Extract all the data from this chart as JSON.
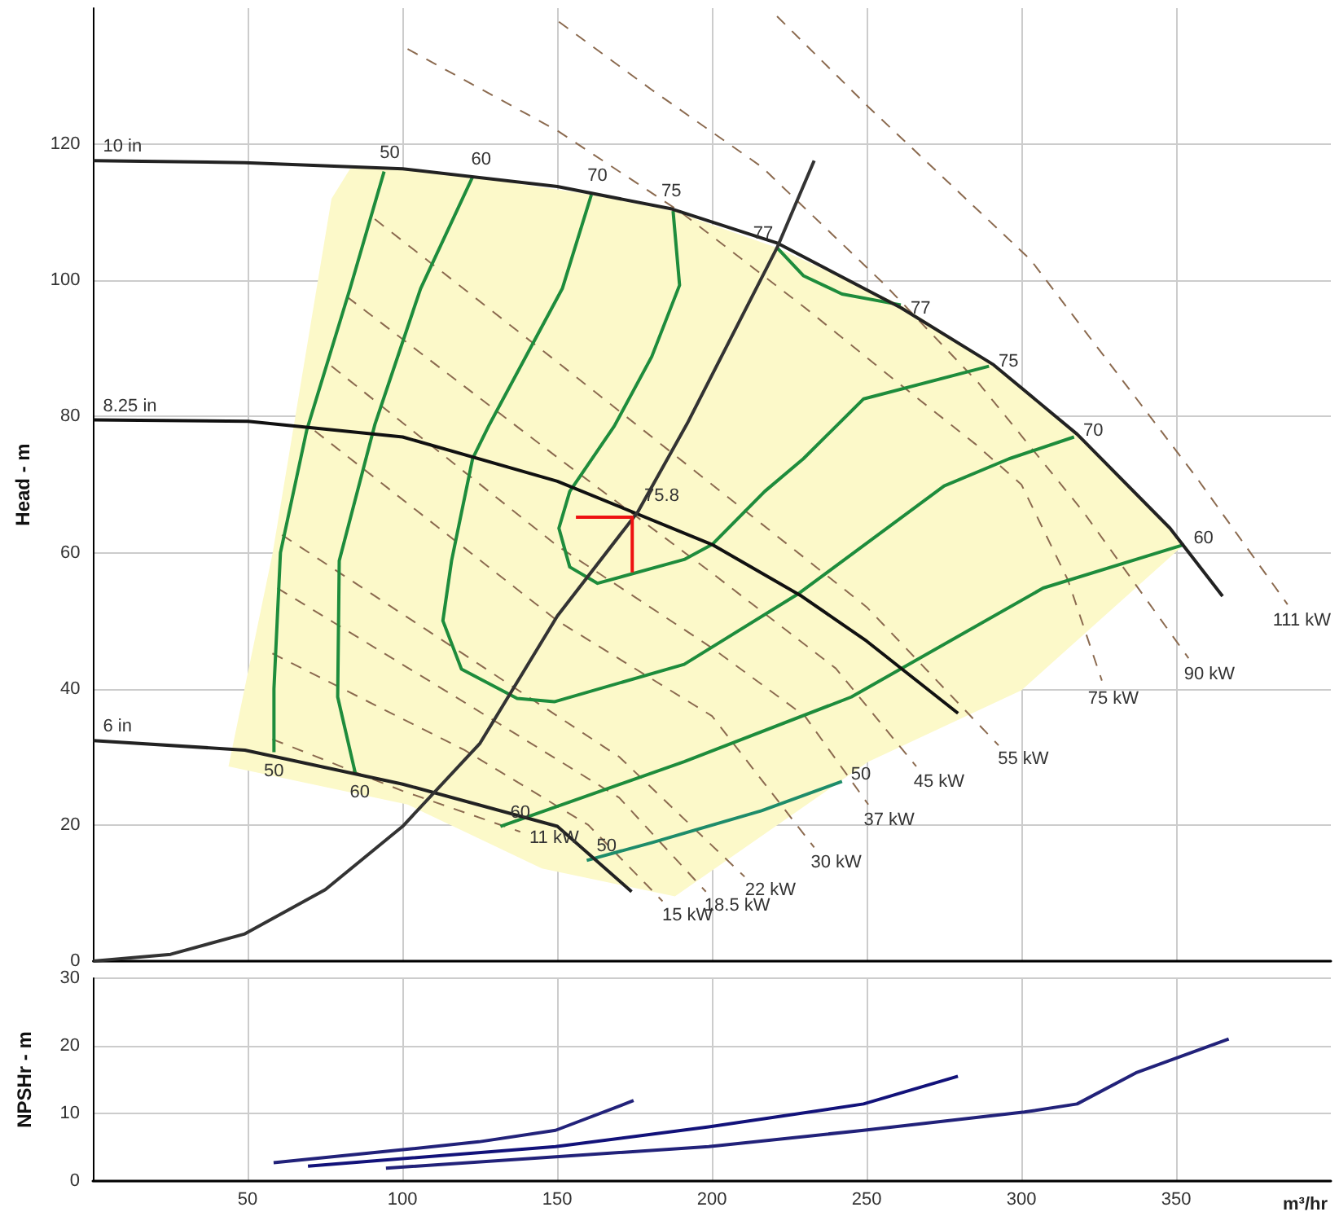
{
  "chart_data": [
    {
      "type": "line",
      "ylabel": "Head - m",
      "xlim": [
        0,
        400
      ],
      "ylim": [
        0,
        140
      ],
      "xticks": [
        50,
        100,
        150,
        200,
        250,
        300,
        350
      ],
      "yticks": [
        0,
        20,
        40,
        60,
        80,
        100,
        120
      ],
      "tick_labels": "y",
      "grid": true,
      "series": [
        {
          "type": "area",
          "color": "#fcf9c9",
          "x": [
            83,
            94,
            122.6,
            161,
            187.4,
            221,
            261,
            291,
            318,
            352.6,
            300,
            250.5,
            188,
            145,
            101.6,
            43.7,
            58,
            77,
            83
          ],
          "values": [
            116.4,
            116.7,
            115.2,
            112.6,
            110.2,
            104.8,
            96.4,
            87.6,
            77.4,
            61.2,
            39.8,
            29.3,
            9.5,
            13.6,
            23,
            28.6,
            60,
            112,
            116.4
          ]
        },
        {
          "color": "#8b6a4f",
          "line_style": "dashed",
          "x": [
            221,
            250.5,
            303,
            356,
            386
          ],
          "values": [
            138.8,
            125.5,
            103,
            71.4,
            52.4
          ]
        },
        {
          "color": "#8b6a4f",
          "line_style": "dashed",
          "x": [
            150.5,
            180.5,
            216,
            256,
            286,
            320,
            354
          ],
          "values": [
            138,
            128,
            116.7,
            99.3,
            85,
            66,
            44.5
          ]
        },
        {
          "color": "#8b6a4f",
          "line_style": "dashed",
          "x": [
            101.6,
            150,
            190,
            230,
            260,
            285,
            300,
            315,
            326
          ],
          "values": [
            134,
            122,
            110,
            96,
            85,
            76,
            70,
            56,
            41.2
          ]
        },
        {
          "color": "#8b6a4f",
          "line_style": "dashed",
          "x": [
            91,
            150,
            200,
            250,
            292.6
          ],
          "values": [
            109,
            88,
            70,
            52,
            31.7
          ]
        },
        {
          "color": "#8b6a4f",
          "line_style": "dashed",
          "x": [
            82,
            150,
            200,
            240,
            266
          ],
          "values": [
            97.6,
            74,
            57,
            43,
            28.6
          ]
        },
        {
          "color": "#8b6a4f",
          "line_style": "dashed",
          "x": [
            77,
            150,
            200,
            230,
            250.5
          ],
          "values": [
            87.4,
            61,
            46,
            36,
            23
          ]
        },
        {
          "color": "#8b6a4f",
          "line_style": "dashed",
          "x": [
            71.6,
            150,
            200,
            233
          ],
          "values": [
            77.9,
            50,
            36,
            16.7
          ]
        },
        {
          "color": "#8b6a4f",
          "line_style": "dashed",
          "x": [
            61,
            120,
            170,
            210.5
          ],
          "values": [
            62.6,
            45,
            30,
            12.4
          ]
        },
        {
          "color": "#8b6a4f",
          "line_style": "dashed",
          "x": [
            59.5,
            120,
            170,
            198
          ],
          "values": [
            54.8,
            38,
            24,
            10.2
          ]
        },
        {
          "color": "#8b6a4f",
          "line_style": "dashed",
          "x": [
            57.9,
            120,
            160,
            184
          ],
          "values": [
            45.2,
            31,
            20,
            8.8
          ]
        },
        {
          "color": "#8b6a4f",
          "line_style": "dashed",
          "x": [
            57.9,
            100,
            138
          ],
          "values": [
            32.6,
            25,
            19
          ]
        },
        {
          "color": "#1e8c3c",
          "x": [
            94,
            83,
            69,
            60.5,
            58.4,
            58.4
          ],
          "values": [
            116,
            98.8,
            78,
            60,
            40,
            30.7
          ]
        },
        {
          "color": "#1e8c3c",
          "x": [
            122.6,
            105.8,
            91,
            79.5,
            79,
            84.7
          ],
          "values": [
            115.2,
            98.8,
            78.8,
            58.8,
            38.8,
            27.6
          ]
        },
        {
          "color": "#1e8c3c",
          "x": [
            161,
            151.6,
            128,
            122.6,
            115.8,
            113,
            119,
            137,
            149,
            191,
            228,
            275,
            296,
            317
          ],
          "values": [
            112.6,
            98.8,
            78.8,
            73.8,
            58.8,
            50,
            42.9,
            38.6,
            38.1,
            43.6,
            54,
            69.8,
            73.8,
            77
          ]
        },
        {
          "color": "#1e8c3c",
          "x": [
            187.4,
            189.5,
            180.5,
            168.4,
            154,
            150.5,
            154,
            163,
            191,
            200,
            217,
            229.5,
            249,
            289.5
          ],
          "values": [
            110.2,
            99.3,
            88.8,
            78.6,
            69,
            63.6,
            57.9,
            55.5,
            59,
            61.2,
            69,
            73.8,
            82.6,
            87.4
          ]
        },
        {
          "color": "#1e8c3c",
          "x": [
            221,
            229.5,
            242,
            261
          ],
          "values": [
            104.8,
            100.7,
            98,
            96.4
          ]
        },
        {
          "color": "#1e8c3c",
          "x": [
            131.6,
            191,
            245,
            307,
            352.6
          ],
          "values": [
            19.8,
            29.3,
            38.8,
            54.8,
            61.2
          ]
        },
        {
          "color": "#1e8c6a",
          "x": [
            159.5,
            180.5,
            216,
            242
          ],
          "values": [
            14.8,
            17.4,
            22.1,
            26.4
          ]
        },
        {
          "color": "#222222",
          "x": [
            0,
            49,
            100,
            150,
            187,
            221,
            261,
            291,
            318,
            348,
            365
          ],
          "values": [
            117.6,
            117.3,
            116.4,
            113.8,
            110.5,
            105.5,
            96,
            87.6,
            77.4,
            63.6,
            53.6
          ]
        },
        {
          "color": "#111111",
          "x": [
            0,
            50,
            100,
            150,
            200,
            229,
            250,
            279.5
          ],
          "values": [
            79.5,
            79.3,
            77,
            70.5,
            61.2,
            53.6,
            47,
            36.4
          ]
        },
        {
          "color": "#222222",
          "x": [
            0,
            49,
            100,
            150,
            174
          ],
          "values": [
            32.4,
            31,
            26,
            19.8,
            10.2
          ]
        },
        {
          "color": "#333333",
          "x": [
            0,
            25,
            49,
            75,
            100,
            125,
            150,
            176,
            192,
            221,
            233
          ],
          "values": [
            0,
            1,
            4,
            10.5,
            19.8,
            32,
            50.7,
            66,
            79,
            104.8,
            117.6
          ]
        },
        {
          "color": "#ee1111",
          "x": [
            156,
            174.2,
            174.2
          ],
          "values": [
            65.2,
            65.2,
            57.1
          ]
        }
      ],
      "annotations": [
        {
          "text": "10 in",
          "x": 0,
          "y": 117.6
        },
        {
          "text": "8.25 in",
          "x": 0,
          "y": 79.5
        },
        {
          "text": "6 in",
          "x": 0,
          "y": 32.4
        },
        {
          "text": "50",
          "x": 94,
          "y": 116
        },
        {
          "text": "60",
          "x": 122.6,
          "y": 115.2
        },
        {
          "text": "70",
          "x": 161,
          "y": 112.6
        },
        {
          "text": "75",
          "x": 187.4,
          "y": 110.2
        },
        {
          "text": "77",
          "x": 221,
          "y": 104.8
        },
        {
          "text": "77",
          "x": 261,
          "y": 96.4
        },
        {
          "text": "75",
          "x": 289.5,
          "y": 87.4
        },
        {
          "text": "70",
          "x": 317,
          "y": 77
        },
        {
          "text": "60",
          "x": 352.6,
          "y": 61.2
        },
        {
          "text": "75.8",
          "x": 176,
          "y": 66
        },
        {
          "text": "50",
          "x": 58.4,
          "y": 30.7
        },
        {
          "text": "60",
          "x": 84.7,
          "y": 27.6
        },
        {
          "text": "60",
          "x": 131.6,
          "y": 19.8
        },
        {
          "text": "11 kW",
          "x": 138,
          "y": 19
        },
        {
          "text": "50",
          "x": 159.5,
          "y": 14.8
        },
        {
          "text": "50",
          "x": 242,
          "y": 26.4
        },
        {
          "text": "15 kW",
          "x": 184,
          "y": 8.8
        },
        {
          "text": "18.5 kW",
          "x": 198,
          "y": 10.2
        },
        {
          "text": "22 kW",
          "x": 210.5,
          "y": 12.4
        },
        {
          "text": "30 kW",
          "x": 233,
          "y": 16.7
        },
        {
          "text": "37 kW",
          "x": 250.5,
          "y": 23
        },
        {
          "text": "45 kW",
          "x": 266,
          "y": 28.6
        },
        {
          "text": "55 kW",
          "x": 292.6,
          "y": 31.7
        },
        {
          "text": "75 kW",
          "x": 326,
          "y": 41.2
        },
        {
          "text": "90 kW",
          "x": 354,
          "y": 44.5
        },
        {
          "text": "111 kW",
          "x": 386,
          "y": 52.4
        }
      ]
    },
    {
      "type": "line",
      "ylabel": "NPSHr - m",
      "xlabel": "m³/hr",
      "xlim": [
        0,
        400
      ],
      "ylim": [
        0,
        30
      ],
      "xticks": [
        50,
        100,
        150,
        200,
        250,
        300,
        350
      ],
      "yticks": [
        0,
        10,
        20,
        30
      ],
      "grid": true,
      "series": [
        {
          "color": "#22227a",
          "x": [
            58.4,
            99.5,
            124.7,
            149.5,
            174.7
          ],
          "values": [
            2.7,
            4.6,
            5.8,
            7.5,
            11.9
          ]
        },
        {
          "color": "#12127a",
          "x": [
            69.5,
            149.5,
            199,
            249,
            279.5
          ],
          "values": [
            2.2,
            5.1,
            8,
            11.4,
            15.5
          ]
        },
        {
          "color": "#22227a",
          "x": [
            94.7,
            199,
            249,
            301,
            318,
            337,
            367
          ],
          "values": [
            1.9,
            5.1,
            7.5,
            10.2,
            11.4,
            16,
            21
          ]
        }
      ]
    }
  ]
}
